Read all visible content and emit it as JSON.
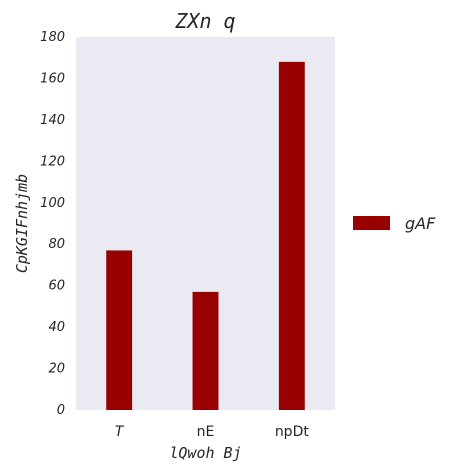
{
  "chart_data": {
    "type": "bar",
    "title": "ZXn q",
    "xlabel": "lQwoh Bj",
    "ylabel": "CpKGIFnhjmb",
    "categories": [
      "T",
      "nE",
      "npDt"
    ],
    "series": [
      {
        "name": "gAF",
        "values": [
          77,
          57,
          168
        ],
        "color": "#990000"
      }
    ],
    "ylim": [
      0,
      180
    ],
    "yticks": [
      0,
      20,
      40,
      60,
      80,
      100,
      120,
      140,
      160,
      180
    ],
    "grid": false,
    "legend": "right",
    "background": "#eaeaf2"
  }
}
